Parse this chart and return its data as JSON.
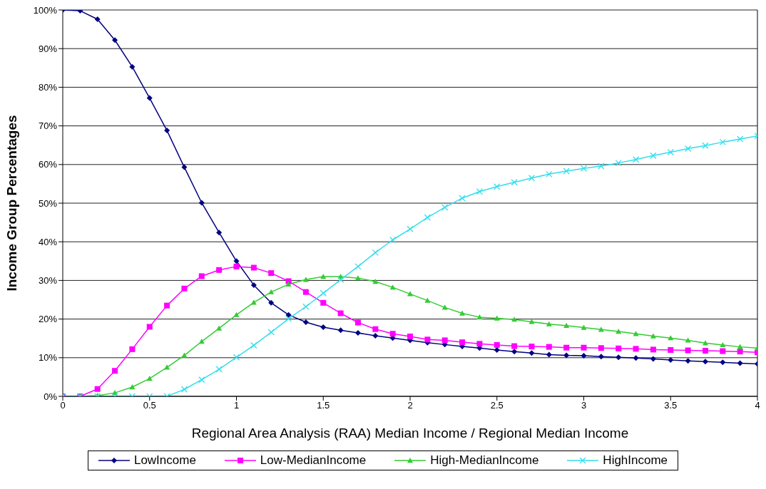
{
  "chart_data": {
    "type": "line",
    "xlabel": "Regional Area Analysis (RAA) Median Income / Regional Median Income",
    "ylabel": "Income Group Percentages",
    "x": [
      0,
      0.1,
      0.2,
      0.3,
      0.4,
      0.5,
      0.6,
      0.7,
      0.8,
      0.9,
      1,
      1.1,
      1.2,
      1.3,
      1.4,
      1.5,
      1.6,
      1.7,
      1.8,
      1.9,
      2,
      2.1,
      2.2,
      2.3,
      2.4,
      2.5,
      2.6,
      2.7,
      2.8,
      2.9,
      3,
      3.1,
      3.2,
      3.3,
      3.4,
      3.5,
      3.6,
      3.7,
      3.8,
      3.9,
      4
    ],
    "series": [
      {
        "name": "LowIncome",
        "color": "#000080",
        "marker": "diamond",
        "values": [
          100,
          99.8,
          97.6,
          92.2,
          85.3,
          77.2,
          68.8,
          59.3,
          50.1,
          42.4,
          35.0,
          28.8,
          24.2,
          21.1,
          19.2,
          17.9,
          17.1,
          16.4,
          15.7,
          15.1,
          14.5,
          13.9,
          13.4,
          12.9,
          12.5,
          12.0,
          11.6,
          11.2,
          10.8,
          10.6,
          10.5,
          10.3,
          10.1,
          9.9,
          9.7,
          9.4,
          9.2,
          9.0,
          8.8,
          8.6,
          8.4
        ]
      },
      {
        "name": "Low-MedianIncome",
        "color": "#ff00ff",
        "marker": "square",
        "values": [
          0,
          0,
          1.9,
          6.6,
          12.2,
          18.0,
          23.5,
          27.9,
          31.1,
          32.7,
          33.6,
          33.3,
          31.9,
          29.8,
          27.0,
          24.2,
          21.5,
          19.1,
          17.4,
          16.2,
          15.5,
          14.7,
          14.5,
          14.0,
          13.6,
          13.3,
          13.0,
          12.9,
          12.8,
          12.6,
          12.6,
          12.5,
          12.4,
          12.3,
          12.1,
          12.0,
          11.9,
          11.8,
          11.7,
          11.6,
          11.4
        ]
      },
      {
        "name": "High-MedianIncome",
        "color": "#33cc33",
        "marker": "triangle",
        "values": [
          0,
          0,
          0.2,
          0.9,
          2.4,
          4.6,
          7.5,
          10.6,
          14.2,
          17.6,
          21.1,
          24.3,
          27.0,
          29.0,
          30.2,
          31.0,
          31.0,
          30.6,
          29.7,
          28.2,
          26.5,
          24.8,
          23.0,
          21.5,
          20.5,
          20.2,
          19.9,
          19.3,
          18.7,
          18.3,
          17.8,
          17.3,
          16.8,
          16.2,
          15.6,
          15.1,
          14.5,
          13.8,
          13.3,
          12.8,
          12.5
        ]
      },
      {
        "name": "HighIncome",
        "color": "#33dded",
        "marker": "cross",
        "values": [
          0,
          0,
          0,
          0,
          0,
          0,
          0,
          1.8,
          4.3,
          7.0,
          10.1,
          13.2,
          16.6,
          20.1,
          23.2,
          26.7,
          30.2,
          33.6,
          37.2,
          40.5,
          43.3,
          46.3,
          48.9,
          51.3,
          53.0,
          54.3,
          55.4,
          56.5,
          57.5,
          58.3,
          59.0,
          59.6,
          60.4,
          61.3,
          62.3,
          63.2,
          64.1,
          64.9,
          65.8,
          66.6,
          67.4
        ]
      }
    ],
    "xlim": [
      0,
      4
    ],
    "xticks": [
      0,
      0.5,
      1,
      1.5,
      2,
      2.5,
      3,
      3.5,
      4
    ],
    "ylim": [
      0,
      100
    ],
    "yticks": [
      {
        "value": 0,
        "label": "0%"
      },
      {
        "value": 10,
        "label": "10%"
      },
      {
        "value": 20,
        "label": "20%"
      },
      {
        "value": 30,
        "label": "30%"
      },
      {
        "value": 40,
        "label": "40%"
      },
      {
        "value": 50,
        "label": "50%"
      },
      {
        "value": 60,
        "label": "60%"
      },
      {
        "value": 70,
        "label": "70%"
      },
      {
        "value": 80,
        "label": "80%"
      },
      {
        "value": 90,
        "label": "90%"
      },
      {
        "value": 100,
        "label": "100%"
      }
    ],
    "grid": "y",
    "legend": "bottom",
    "line_style": "solid"
  }
}
